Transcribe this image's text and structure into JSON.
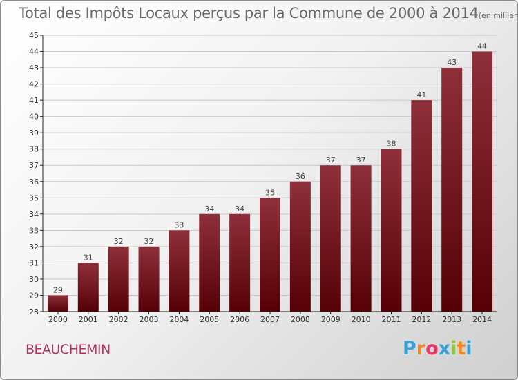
{
  "header": {
    "title": "Total des Impôts Locaux perçus par la Commune de 2000 à 2014",
    "unit": "(en milliers d'€)"
  },
  "footer": {
    "commune": "BEAUCHEMIN",
    "logo_letters": [
      "P",
      "r",
      "o",
      "x",
      "i",
      "t",
      "i"
    ],
    "logo_colors": [
      "#3aa0d8",
      "#f08a1c",
      "#e83a6a",
      "#3aa0d8",
      "#8cc63f",
      "#f08a1c",
      "#3aa0d8"
    ]
  },
  "colors": {
    "bar_top": "#8e2f3a",
    "bar_bottom": "#560006",
    "gridline": "#c8c8c8",
    "axis": "#222222"
  },
  "chart_data": {
    "type": "bar",
    "title": "Total des Impôts Locaux perçus par la Commune de 2000 à 2014",
    "ylabel": "",
    "xlabel": "",
    "categories": [
      "2000",
      "2001",
      "2002",
      "2003",
      "2004",
      "2005",
      "2006",
      "2007",
      "2008",
      "2009",
      "2010",
      "2011",
      "2012",
      "2013",
      "2014"
    ],
    "values": [
      29,
      31,
      32,
      32,
      33,
      34,
      34,
      35,
      36,
      37,
      37,
      38,
      41,
      43,
      44
    ],
    "ylim": [
      28,
      45
    ],
    "yticks": [
      28,
      29,
      30,
      31,
      32,
      33,
      34,
      35,
      36,
      37,
      38,
      39,
      40,
      41,
      42,
      43,
      44,
      45
    ],
    "grid": true
  }
}
